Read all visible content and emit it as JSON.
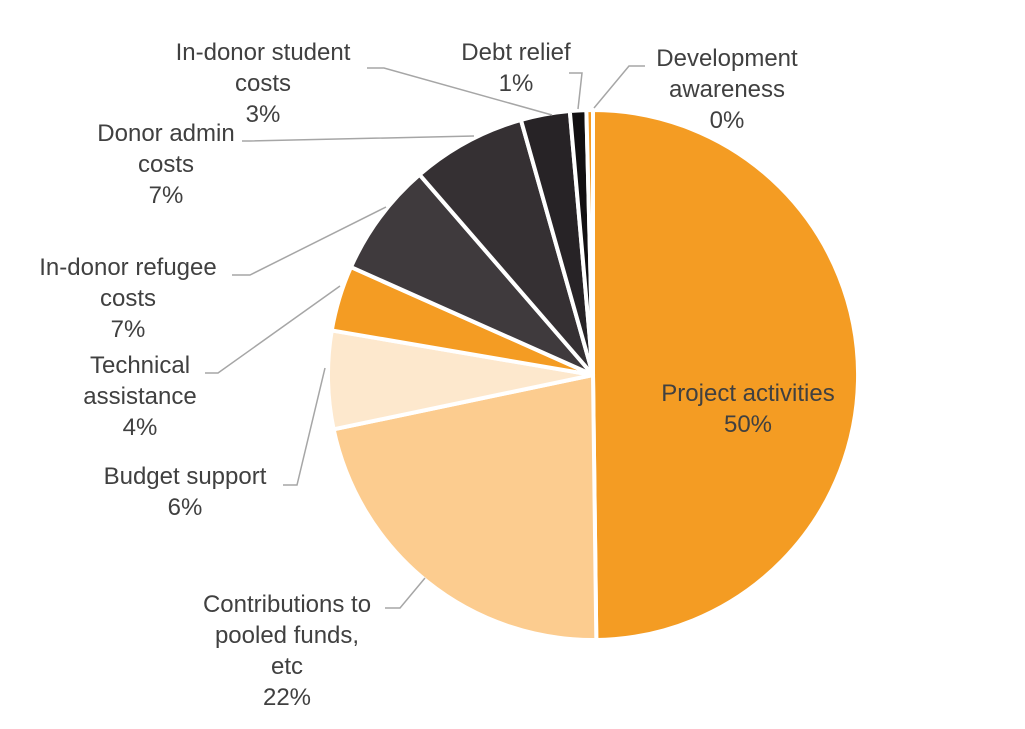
{
  "chart_data": {
    "type": "pie",
    "title": "",
    "slices": [
      {
        "name": "Project activities",
        "value": 50,
        "label_lines": [
          "Project activities"
        ],
        "pct_label": "50%",
        "color": "#f49c23"
      },
      {
        "name": "Contributions to pooled funds, etc",
        "value": 22,
        "label_lines": [
          "Contributions to",
          "pooled funds,",
          "etc"
        ],
        "pct_label": "22%",
        "color": "#fccc8f"
      },
      {
        "name": "Budget support",
        "value": 6,
        "label_lines": [
          "Budget support"
        ],
        "pct_label": "6%",
        "color": "#fde8cd"
      },
      {
        "name": "Technical assistance",
        "value": 4,
        "label_lines": [
          "Technical",
          "assistance"
        ],
        "pct_label": "4%",
        "color": "#f49c23"
      },
      {
        "name": "In-donor refugee costs",
        "value": 7,
        "label_lines": [
          "In-donor refugee",
          "costs"
        ],
        "pct_label": "7%",
        "color": "#3f3a3d"
      },
      {
        "name": "Donor admin costs",
        "value": 7,
        "label_lines": [
          "Donor admin",
          "costs"
        ],
        "pct_label": "7%",
        "color": "#353033"
      },
      {
        "name": "In-donor student costs",
        "value": 3,
        "label_lines": [
          "In-donor student",
          "costs"
        ],
        "pct_label": "3%",
        "color": "#272326"
      },
      {
        "name": "Debt relief",
        "value": 1,
        "label_lines": [
          "Debt relief"
        ],
        "pct_label": "1%",
        "color": "#121012"
      },
      {
        "name": "Development awareness",
        "value": 0.4,
        "label_lines": [
          "Development",
          "awareness"
        ],
        "pct_label": "0%",
        "color": "#f49c23"
      }
    ]
  }
}
